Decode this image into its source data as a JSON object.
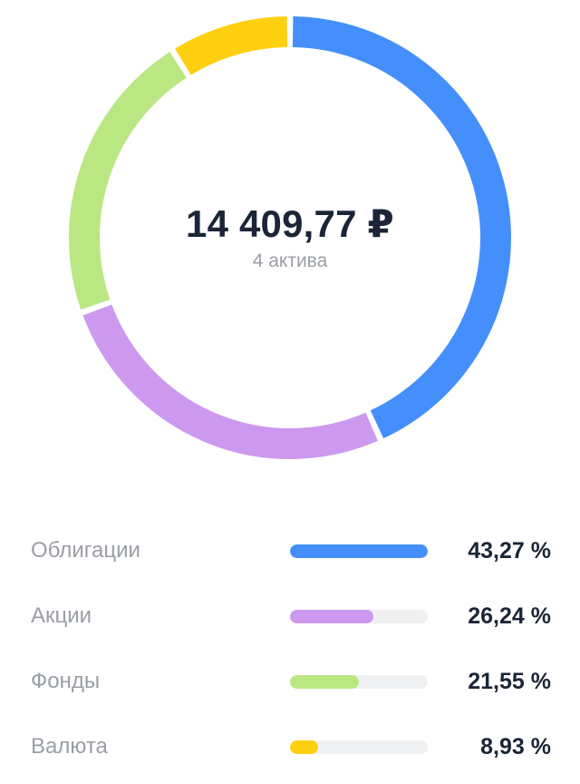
{
  "summary": {
    "total": "14 409,77 ₽",
    "assets_count": "4 актива"
  },
  "chart_data": {
    "type": "pie",
    "categories": [
      "Облигации",
      "Акции",
      "Фонды",
      "Валюта"
    ],
    "values": [
      43.27,
      26.24,
      21.55,
      8.93
    ],
    "value_labels": [
      "43,27 %",
      "26,24 %",
      "21,55 %",
      "8,93 %"
    ],
    "colors": [
      "#448ffb",
      "#cd99ef",
      "#bbe783",
      "#ffd010"
    ],
    "donut": true,
    "track_color": "#eff0f2"
  }
}
